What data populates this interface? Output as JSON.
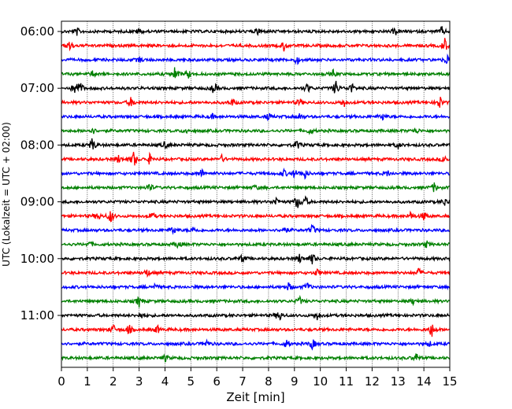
{
  "chart_data": {
    "type": "line",
    "xlabel": "Zeit  [min]",
    "ylabel": "UTC (Lokalzeit = UTC + 02:00)",
    "xlim": [
      0,
      15
    ],
    "x_ticks": [
      0,
      1,
      2,
      3,
      4,
      5,
      6,
      7,
      8,
      9,
      10,
      11,
      12,
      13,
      14,
      15
    ],
    "x_tick_labels": [
      "0",
      "1",
      "2",
      "3",
      "4",
      "5",
      "6",
      "7",
      "8",
      "9",
      "10",
      "11",
      "12",
      "13",
      "14",
      "15"
    ],
    "y_ticks_hours": [
      6,
      7,
      8,
      9,
      10,
      11
    ],
    "y_tick_labels": [
      "06:00",
      "07:00",
      "08:00",
      "09:00",
      "10:00",
      "11:00"
    ],
    "ylim_hours": [
      6.0,
      11.75
    ],
    "vertical_grid": true,
    "trace_interval_min": 15,
    "colors": [
      "#000000",
      "#ff0000",
      "#0000ff",
      "#008000"
    ],
    "traces": [
      {
        "start": "06:00",
        "color": "#000000",
        "events": [
          [
            0.6,
            0.5
          ],
          [
            3.0,
            0.5
          ],
          [
            7.6,
            0.6
          ],
          [
            12.9,
            0.5
          ],
          [
            14.7,
            0.6
          ]
        ]
      },
      {
        "start": "06:15",
        "color": "#ff0000",
        "events": [
          [
            0.3,
            0.9
          ],
          [
            8.6,
            0.8
          ],
          [
            14.8,
            1.1
          ]
        ]
      },
      {
        "start": "06:30",
        "color": "#0000ff",
        "events": [
          [
            3.0,
            0.4
          ],
          [
            9.1,
            0.6
          ],
          [
            14.9,
            0.8
          ]
        ]
      },
      {
        "start": "06:45",
        "color": "#008000",
        "events": [
          [
            1.2,
            0.4
          ],
          [
            4.4,
            1.3
          ],
          [
            4.9,
            0.6
          ],
          [
            10.5,
            0.5
          ]
        ]
      },
      {
        "start": "07:00",
        "color": "#000000",
        "events": [
          [
            0.5,
            0.7
          ],
          [
            0.7,
            1.3
          ],
          [
            5.9,
            0.9
          ],
          [
            9.5,
            0.7
          ],
          [
            10.6,
            1.2
          ],
          [
            11.2,
            0.8
          ]
        ]
      },
      {
        "start": "07:15",
        "color": "#ff0000",
        "events": [
          [
            2.7,
            0.8
          ],
          [
            6.6,
            0.5
          ],
          [
            9.2,
            0.6
          ],
          [
            10.9,
            0.7
          ],
          [
            14.6,
            1.1
          ]
        ]
      },
      {
        "start": "07:30",
        "color": "#0000ff",
        "events": [
          [
            5.8,
            0.4
          ],
          [
            8.0,
            0.5
          ],
          [
            9.2,
            0.5
          ],
          [
            12.4,
            0.5
          ]
        ]
      },
      {
        "start": "07:45",
        "color": "#008000",
        "events": [
          [
            1.2,
            0.5
          ],
          [
            4.8,
            0.4
          ],
          [
            9.6,
            0.5
          ],
          [
            13.7,
            0.4
          ]
        ]
      },
      {
        "start": "08:00",
        "color": "#000000",
        "events": [
          [
            1.2,
            1.1
          ],
          [
            4.0,
            0.5
          ],
          [
            9.1,
            0.7
          ],
          [
            13.0,
            0.5
          ]
        ]
      },
      {
        "start": "08:15",
        "color": "#ff0000",
        "events": [
          [
            2.2,
            0.6
          ],
          [
            2.8,
            1.3
          ],
          [
            3.4,
            0.7
          ],
          [
            6.2,
            0.5
          ],
          [
            14.8,
            0.6
          ]
        ]
      },
      {
        "start": "08:30",
        "color": "#0000ff",
        "events": [
          [
            5.4,
            0.7
          ],
          [
            8.6,
            0.5
          ],
          [
            9.0,
            0.6
          ],
          [
            9.4,
            0.7
          ],
          [
            12.6,
            0.4
          ]
        ]
      },
      {
        "start": "08:45",
        "color": "#008000",
        "events": [
          [
            3.4,
            0.7
          ],
          [
            7.5,
            0.4
          ],
          [
            14.4,
            0.7
          ]
        ]
      },
      {
        "start": "09:00",
        "color": "#000000",
        "events": [
          [
            8.3,
            0.7
          ],
          [
            9.1,
            1.1
          ],
          [
            9.4,
            0.9
          ],
          [
            14.8,
            0.6
          ]
        ]
      },
      {
        "start": "09:15",
        "color": "#ff0000",
        "events": [
          [
            1.4,
            0.7
          ],
          [
            1.9,
            1.1
          ],
          [
            3.5,
            0.6
          ],
          [
            13.5,
            0.6
          ],
          [
            14.0,
            0.7
          ]
        ]
      },
      {
        "start": "09:30",
        "color": "#0000ff",
        "events": [
          [
            4.3,
            0.7
          ],
          [
            5.1,
            0.5
          ],
          [
            8.6,
            0.6
          ],
          [
            9.7,
            0.8
          ]
        ]
      },
      {
        "start": "09:45",
        "color": "#008000",
        "events": [
          [
            1.1,
            0.4
          ],
          [
            4.5,
            0.6
          ],
          [
            14.1,
            0.5
          ]
        ]
      },
      {
        "start": "10:00",
        "color": "#000000",
        "events": [
          [
            7.0,
            0.6
          ],
          [
            9.2,
            0.7
          ],
          [
            9.7,
            0.9
          ]
        ]
      },
      {
        "start": "10:15",
        "color": "#ff0000",
        "events": [
          [
            3.3,
            0.6
          ],
          [
            9.9,
            0.6
          ],
          [
            13.8,
            0.6
          ]
        ]
      },
      {
        "start": "10:30",
        "color": "#0000ff",
        "events": [
          [
            3.6,
            0.4
          ],
          [
            8.8,
            0.7
          ],
          [
            9.5,
            0.6
          ]
        ]
      },
      {
        "start": "10:45",
        "color": "#008000",
        "events": [
          [
            3.0,
            0.8
          ],
          [
            9.2,
            0.6
          ],
          [
            13.6,
            0.5
          ]
        ]
      },
      {
        "start": "11:00",
        "color": "#000000",
        "events": [
          [
            3.1,
            0.5
          ],
          [
            8.4,
            1.1
          ],
          [
            9.9,
            0.7
          ]
        ]
      },
      {
        "start": "11:15",
        "color": "#ff0000",
        "events": [
          [
            2.0,
            0.7
          ],
          [
            2.6,
            0.8
          ],
          [
            3.7,
            0.6
          ],
          [
            14.3,
            1.2
          ]
        ]
      },
      {
        "start": "11:30",
        "color": "#0000ff",
        "events": [
          [
            5.6,
            0.5
          ],
          [
            8.7,
            0.6
          ],
          [
            9.7,
            0.8
          ],
          [
            14.2,
            0.4
          ]
        ]
      },
      {
        "start": "11:45",
        "color": "#008000",
        "events": [
          [
            4.0,
            0.5
          ],
          [
            13.7,
            0.7
          ]
        ]
      }
    ]
  }
}
